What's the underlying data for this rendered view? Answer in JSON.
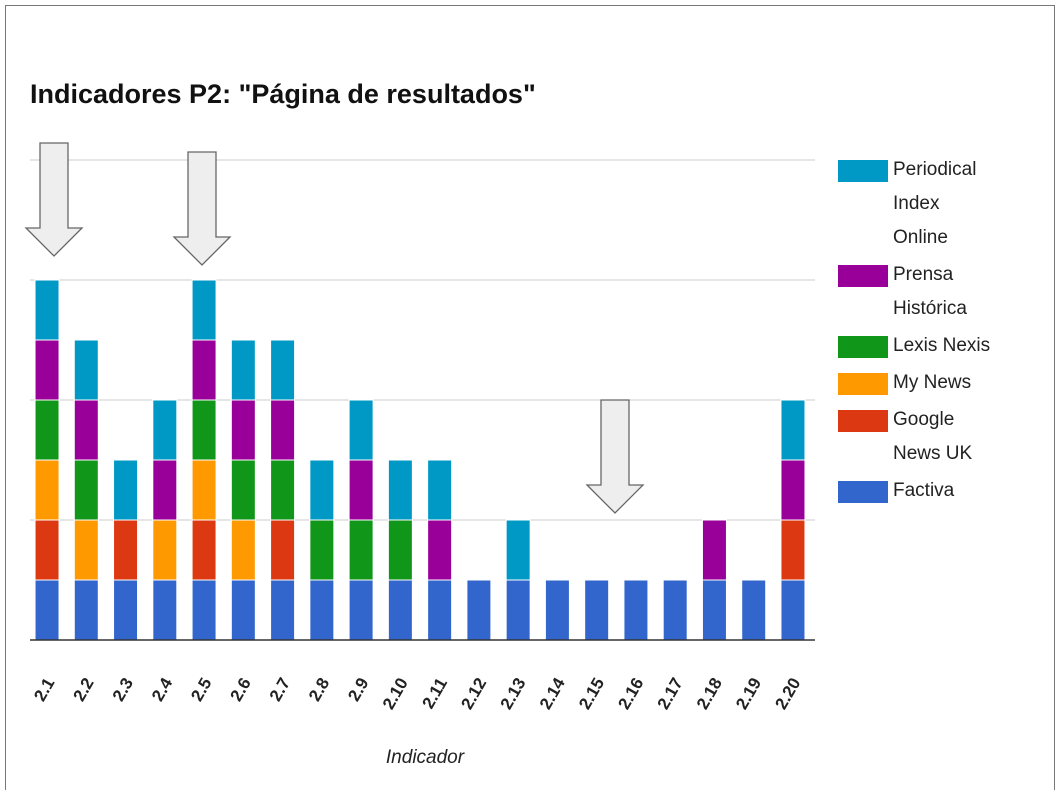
{
  "chart_data": {
    "type": "stacked_bar",
    "title": "Indicadores P2: \"Página de resultados\"",
    "x_label": "Indicador",
    "categories": [
      "2.1",
      "2.2",
      "2.3",
      "2.4",
      "2.5",
      "2.6",
      "2.7",
      "2.8",
      "2.9",
      "2.10",
      "2.11",
      "2.12",
      "2.13",
      "2.14",
      "2.15",
      "2.16",
      "2.17",
      "2.18",
      "2.19",
      "2.20"
    ],
    "series": [
      {
        "name": "Periodical Index Online",
        "color": "#0099c6",
        "values": [
          1,
          1,
          1,
          1,
          1,
          1,
          1,
          1,
          1,
          1,
          1,
          0,
          1,
          0,
          0,
          0,
          0,
          0,
          0,
          1
        ]
      },
      {
        "name": "Prensa Histórica",
        "color": "#990099",
        "values": [
          1,
          1,
          0,
          1,
          1,
          1,
          1,
          0,
          1,
          0,
          1,
          0,
          0,
          0,
          0,
          0,
          0,
          1,
          0,
          1
        ]
      },
      {
        "name": "Lexis Nexis",
        "color": "#109618",
        "values": [
          1,
          1,
          0,
          0,
          1,
          1,
          1,
          1,
          1,
          1,
          0,
          0,
          0,
          0,
          0,
          0,
          0,
          0,
          0,
          0
        ]
      },
      {
        "name": "My News",
        "color": "#ff9900",
        "values": [
          1,
          1,
          0,
          1,
          1,
          1,
          0,
          0,
          0,
          0,
          0,
          0,
          0,
          0,
          0,
          0,
          0,
          0,
          0,
          0
        ]
      },
      {
        "name": "Google News UK",
        "color": "#dc3912",
        "values": [
          1,
          0,
          1,
          0,
          1,
          0,
          1,
          0,
          0,
          0,
          0,
          0,
          0,
          0,
          0,
          0,
          0,
          0,
          0,
          1
        ]
      },
      {
        "name": "Factiva",
        "color": "#3366cc",
        "values": [
          1,
          1,
          1,
          1,
          1,
          1,
          1,
          1,
          1,
          1,
          1,
          1,
          1,
          1,
          1,
          1,
          1,
          1,
          1,
          1
        ]
      }
    ],
    "ylim": [
      0,
      8
    ],
    "yticks": [
      0,
      2,
      4,
      6,
      8
    ],
    "grid": true,
    "legend": "right"
  }
}
